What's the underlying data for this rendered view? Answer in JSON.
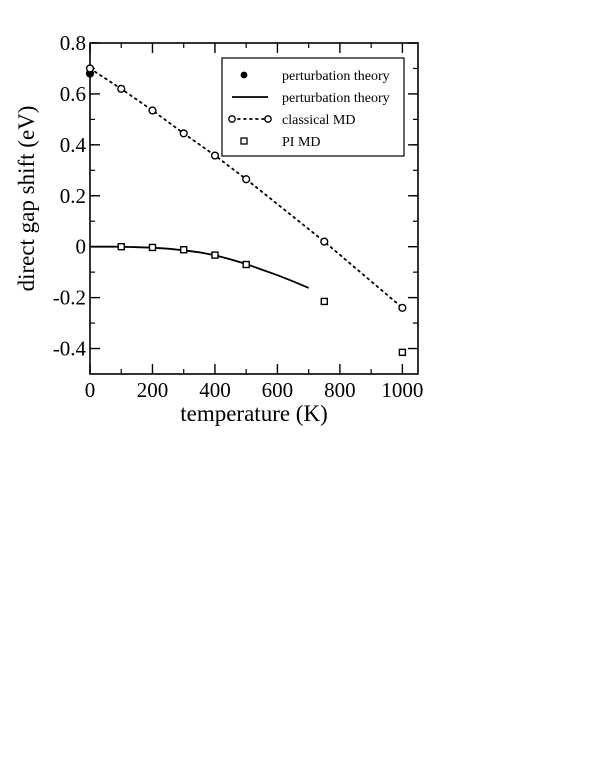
{
  "chart_data": {
    "type": "scatter",
    "title": "",
    "xlabel": "temperature (K)",
    "ylabel": "direct gap shift (eV)",
    "xlim": [
      0,
      1050
    ],
    "ylim": [
      -0.5,
      0.8
    ],
    "x_ticks": [
      0,
      200,
      400,
      600,
      800,
      1000
    ],
    "x_tick_labels": [
      "0",
      "200",
      "400",
      "600",
      "800",
      "1000"
    ],
    "y_ticks": [
      0.8,
      0.6,
      0.4,
      0.2,
      0,
      -0.2,
      -0.4
    ],
    "y_tick_labels": [
      "0.8",
      "0.6",
      "0.4",
      "0.2",
      "0",
      "-0.2",
      "-0.4"
    ],
    "grid": false,
    "legend_position": "top-right",
    "series": [
      {
        "name": "perturbation theory",
        "kind": "filled-circle",
        "color": "#000000",
        "x": [
          0
        ],
        "y": [
          0.68
        ]
      },
      {
        "name": "perturbation theory",
        "kind": "solid-line",
        "color": "#000000",
        "x": [
          0,
          50,
          100,
          150,
          200,
          250,
          300,
          350,
          400,
          450,
          500,
          550,
          600,
          650,
          700
        ],
        "y": [
          0.0,
          0.0,
          0.0,
          -0.002,
          -0.004,
          -0.008,
          -0.014,
          -0.022,
          -0.034,
          -0.05,
          -0.068,
          -0.09,
          -0.112,
          -0.136,
          -0.162
        ]
      },
      {
        "name": "classical MD",
        "kind": "dotted-line-open-circle",
        "color": "#000000",
        "x": [
          0,
          100,
          200,
          300,
          400,
          500,
          750,
          1000
        ],
        "y": [
          0.7,
          0.62,
          0.535,
          0.445,
          0.358,
          0.265,
          0.02,
          -0.24
        ]
      },
      {
        "name": "PI MD",
        "kind": "open-square",
        "color": "#000000",
        "x": [
          100,
          200,
          300,
          400,
          500,
          750,
          1000
        ],
        "y": [
          0.0,
          -0.003,
          -0.012,
          -0.033,
          -0.07,
          -0.215,
          -0.415
        ]
      }
    ]
  }
}
